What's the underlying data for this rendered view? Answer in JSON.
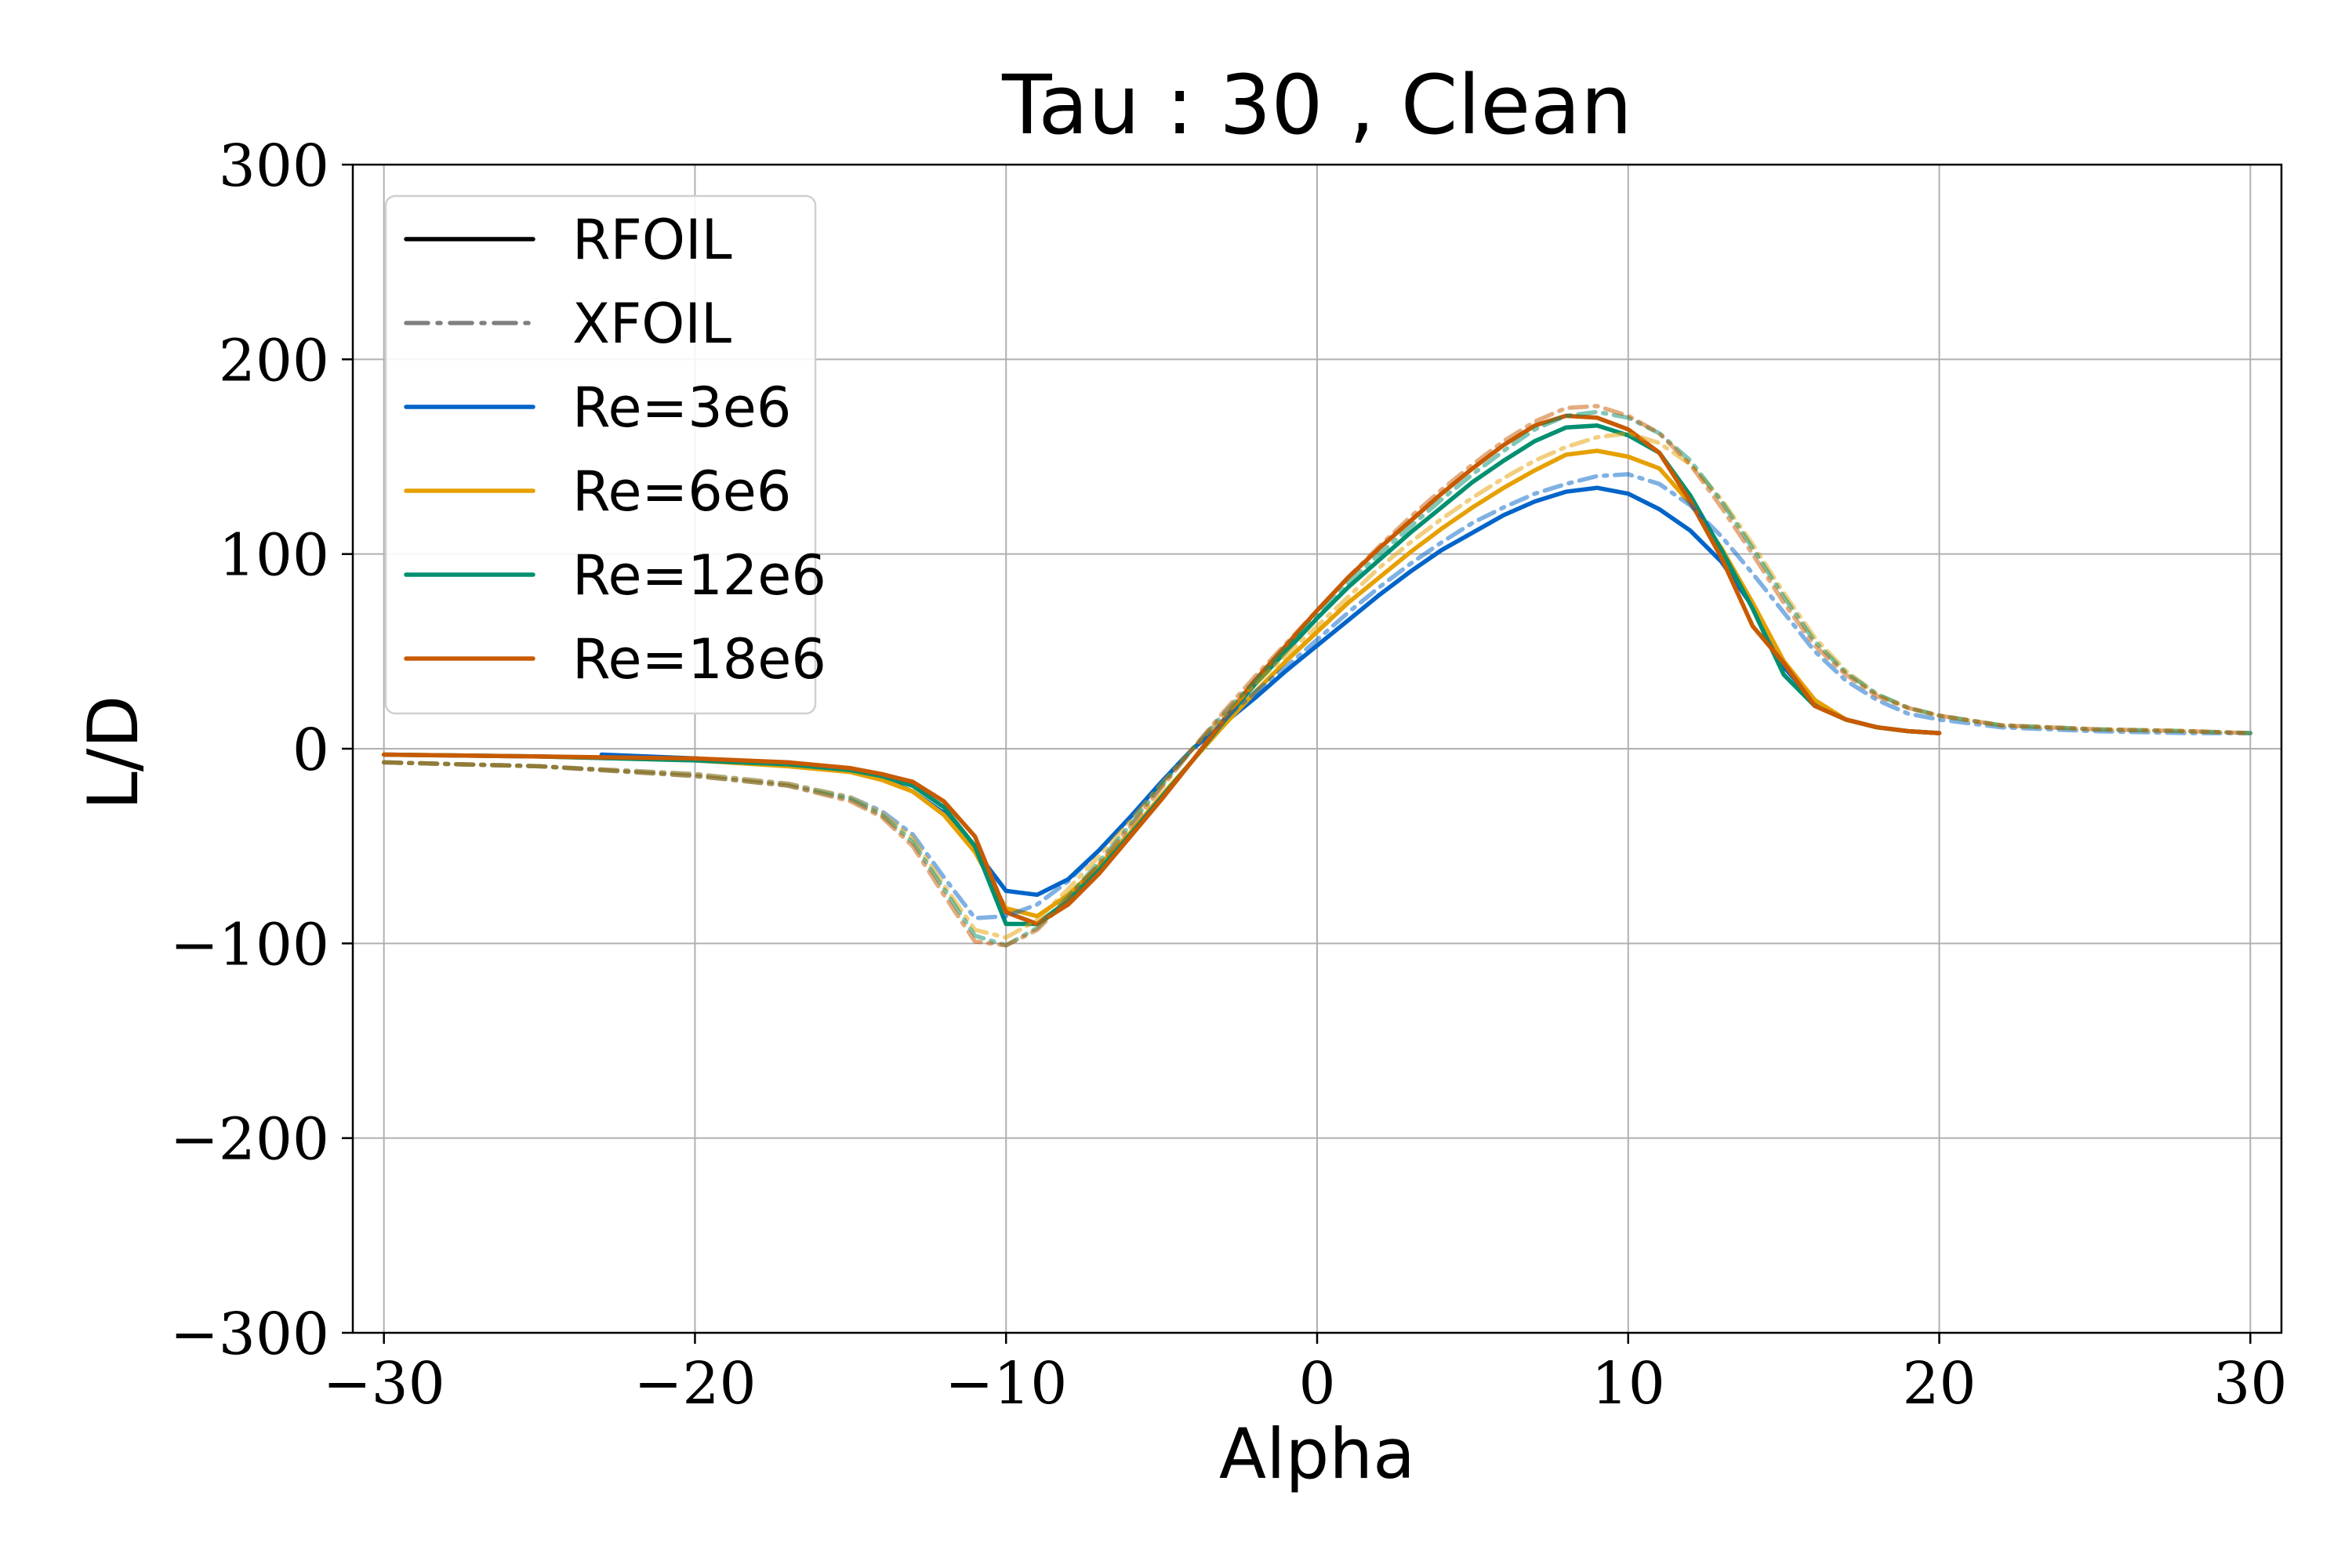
{
  "chart_data": {
    "type": "line",
    "title": "Tau : 30 , Clean",
    "xlabel": "Alpha",
    "ylabel": "L/D",
    "xlim": [
      -31,
      31
    ],
    "ylim": [
      -300,
      300
    ],
    "xticks": [
      -30,
      -20,
      -10,
      0,
      10,
      20,
      30
    ],
    "yticks": [
      -300,
      -200,
      -100,
      0,
      100,
      200,
      300
    ],
    "xtick_labels": [
      "−30",
      "−20",
      "−10",
      "0",
      "10",
      "20",
      "30"
    ],
    "ytick_labels": [
      "−300",
      "−200",
      "−100",
      "0",
      "100",
      "200",
      "300"
    ],
    "grid": true,
    "legend_placement": "top-left",
    "legend": [
      {
        "label": "RFOIL",
        "color": "#000000",
        "style": "solid"
      },
      {
        "label": "XFOIL",
        "color": "#808080",
        "style": "dashdot"
      },
      {
        "label": "Re=3e6",
        "color": "#0064c8",
        "style": "solid"
      },
      {
        "label": "Re=6e6",
        "color": "#e6a000",
        "style": "solid"
      },
      {
        "label": "Re=12e6",
        "color": "#009070",
        "style": "solid"
      },
      {
        "label": "Re=18e6",
        "color": "#c85a00",
        "style": "solid"
      }
    ],
    "series": [
      {
        "method": "RFOIL",
        "re": "Re=3e6",
        "color": "#0064c8",
        "style": "solid",
        "x": [
          -23,
          -20,
          -17,
          -15,
          -14,
          -13,
          -12,
          -11,
          -10,
          -9,
          -8,
          -7,
          -6,
          -5,
          -4,
          -3,
          -2,
          -1,
          0,
          1,
          2,
          3,
          4,
          5,
          6,
          7,
          8,
          9,
          10,
          11,
          12,
          13,
          14,
          15,
          16,
          17,
          18,
          19,
          20
        ],
        "y": [
          -3,
          -5,
          -8,
          -11,
          -15,
          -22,
          -33,
          -52,
          -73,
          -75,
          -67,
          -52,
          -35,
          -17,
          0,
          13,
          26,
          40,
          53,
          66,
          79,
          91,
          102,
          111,
          120,
          127,
          132,
          134,
          131,
          123,
          112,
          96,
          73,
          42,
          24,
          15,
          11,
          9,
          8
        ]
      },
      {
        "method": "RFOIL",
        "re": "Re=6e6",
        "color": "#e6a000",
        "style": "solid",
        "x": [
          -30,
          -25,
          -20,
          -17,
          -15,
          -14,
          -13,
          -12,
          -11,
          -10,
          -9,
          -8,
          -7,
          -6,
          -5,
          -4,
          -3,
          -2,
          -1,
          0,
          1,
          2,
          3,
          4,
          5,
          6,
          7,
          8,
          9,
          10,
          11,
          12,
          13,
          14,
          15,
          16,
          17,
          18,
          19,
          20
        ],
        "y": [
          -3,
          -4,
          -6,
          -9,
          -12,
          -16,
          -22,
          -34,
          -53,
          -82,
          -86,
          -75,
          -60,
          -43,
          -24,
          -6,
          12,
          29,
          45,
          60,
          75,
          88,
          101,
          113,
          124,
          134,
          143,
          151,
          153,
          150,
          144,
          126,
          103,
          75,
          45,
          25,
          15,
          11,
          9,
          8
        ]
      },
      {
        "method": "RFOIL",
        "re": "Re=12e6",
        "color": "#009070",
        "style": "solid",
        "x": [
          -30,
          -25,
          -20,
          -17,
          -15,
          -14,
          -13,
          -12,
          -11,
          -10,
          -9,
          -8,
          -7,
          -6,
          -5,
          -4,
          -3,
          -2,
          -1,
          0,
          1,
          2,
          3,
          4,
          5,
          6,
          7,
          8,
          9,
          10,
          11,
          12,
          13,
          14,
          15,
          16,
          17,
          18,
          19,
          20
        ],
        "y": [
          -3,
          -4,
          -6,
          -8,
          -11,
          -14,
          -19,
          -30,
          -50,
          -90,
          -90,
          -78,
          -62,
          -44,
          -25,
          -6,
          14,
          33,
          50,
          67,
          83,
          97,
          111,
          124,
          137,
          148,
          158,
          165,
          166,
          161,
          152,
          130,
          102,
          72,
          38,
          22,
          15,
          11,
          9,
          8
        ]
      },
      {
        "method": "RFOIL",
        "re": "Re=18e6",
        "color": "#c85a00",
        "style": "solid",
        "x": [
          -30,
          -25,
          -20,
          -17,
          -15,
          -14,
          -13,
          -12,
          -11,
          -10,
          -9,
          -8,
          -7,
          -6,
          -5,
          -4,
          -3,
          -2,
          -1,
          0,
          1,
          2,
          3,
          4,
          5,
          6,
          7,
          8,
          9,
          10,
          11,
          12,
          13,
          14,
          15,
          16,
          17,
          18,
          19,
          20
        ],
        "y": [
          -3,
          -4,
          -5,
          -7,
          -10,
          -13,
          -17,
          -27,
          -45,
          -84,
          -90,
          -80,
          -64,
          -45,
          -26,
          -6,
          15,
          35,
          53,
          71,
          88,
          103,
          117,
          131,
          144,
          156,
          166,
          171,
          170,
          164,
          152,
          127,
          98,
          63,
          44,
          22,
          15,
          11,
          9,
          8
        ]
      },
      {
        "method": "XFOIL",
        "re": "Re=3e6",
        "color": "#0064c8",
        "style": "dashdot",
        "x": [
          -30,
          -25,
          -20,
          -17,
          -15,
          -14,
          -13,
          -12,
          -11,
          -10,
          -9,
          -8,
          -7,
          -6,
          -5,
          -4,
          -3,
          -2,
          -1,
          0,
          1,
          2,
          3,
          4,
          5,
          6,
          7,
          8,
          9,
          10,
          11,
          12,
          13,
          14,
          15,
          16,
          17,
          18,
          19,
          20,
          22,
          25,
          28,
          30
        ],
        "y": [
          -7,
          -9,
          -13,
          -18,
          -25,
          -32,
          -44,
          -66,
          -87,
          -86,
          -80,
          -68,
          -52,
          -35,
          -17,
          0,
          15,
          29,
          42,
          56,
          70,
          83,
          95,
          106,
          116,
          124,
          131,
          136,
          140,
          141,
          136,
          125,
          109,
          90,
          70,
          50,
          35,
          25,
          18,
          15,
          11,
          9,
          8,
          8
        ]
      },
      {
        "method": "XFOIL",
        "re": "Re=6e6",
        "color": "#e6a000",
        "style": "dashdot",
        "x": [
          -30,
          -25,
          -20,
          -17,
          -15,
          -14,
          -13,
          -12,
          -11,
          -10,
          -9,
          -8,
          -7,
          -6,
          -5,
          -4,
          -3,
          -2,
          -1,
          0,
          1,
          2,
          3,
          4,
          5,
          6,
          7,
          8,
          9,
          10,
          11,
          12,
          13,
          14,
          15,
          16,
          17,
          18,
          19,
          20,
          22,
          25,
          28,
          30
        ],
        "y": [
          -7,
          -9,
          -13,
          -18,
          -25,
          -33,
          -46,
          -70,
          -93,
          -97,
          -88,
          -72,
          -55,
          -37,
          -18,
          0,
          17,
          33,
          48,
          63,
          78,
          93,
          106,
          118,
          129,
          139,
          148,
          155,
          160,
          162,
          157,
          146,
          128,
          105,
          80,
          57,
          40,
          28,
          21,
          17,
          12,
          10,
          9,
          8
        ]
      },
      {
        "method": "XFOIL",
        "re": "Re=12e6",
        "color": "#009070",
        "style": "dashdot",
        "x": [
          -30,
          -25,
          -20,
          -17,
          -15,
          -14,
          -13,
          -12,
          -11,
          -10,
          -9,
          -8,
          -7,
          -6,
          -5,
          -4,
          -3,
          -2,
          -1,
          0,
          1,
          2,
          3,
          4,
          5,
          6,
          7,
          8,
          9,
          10,
          11,
          12,
          13,
          14,
          15,
          16,
          17,
          18,
          19,
          20,
          22,
          25,
          28,
          30
        ],
        "y": [
          -7,
          -9,
          -14,
          -19,
          -26,
          -34,
          -48,
          -72,
          -96,
          -101,
          -92,
          -76,
          -58,
          -39,
          -19,
          0,
          18,
          35,
          52,
          68,
          85,
          100,
          114,
          128,
          141,
          153,
          164,
          171,
          173,
          170,
          162,
          148,
          127,
          103,
          78,
          55,
          39,
          28,
          21,
          17,
          12,
          10,
          9,
          8
        ]
      },
      {
        "method": "XFOIL",
        "re": "Re=18e6",
        "color": "#c85a00",
        "style": "dashdot",
        "x": [
          -30,
          -25,
          -20,
          -17,
          -15,
          -14,
          -13,
          -12,
          -11,
          -10,
          -9,
          -8,
          -7,
          -6,
          -5,
          -4,
          -3,
          -2,
          -1,
          0,
          1,
          2,
          3,
          4,
          5,
          6,
          7,
          8,
          9,
          10,
          11,
          12,
          13,
          14,
          15,
          16,
          17,
          18,
          19,
          20,
          22,
          25,
          28,
          30
        ],
        "y": [
          -7,
          -9,
          -14,
          -19,
          -27,
          -35,
          -50,
          -75,
          -99,
          -101,
          -93,
          -77,
          -59,
          -40,
          -20,
          0,
          19,
          37,
          54,
          71,
          88,
          104,
          119,
          133,
          146,
          158,
          168,
          175,
          176,
          171,
          162,
          146,
          124,
          100,
          75,
          53,
          38,
          27,
          21,
          17,
          12,
          10,
          9,
          8
        ]
      }
    ]
  }
}
